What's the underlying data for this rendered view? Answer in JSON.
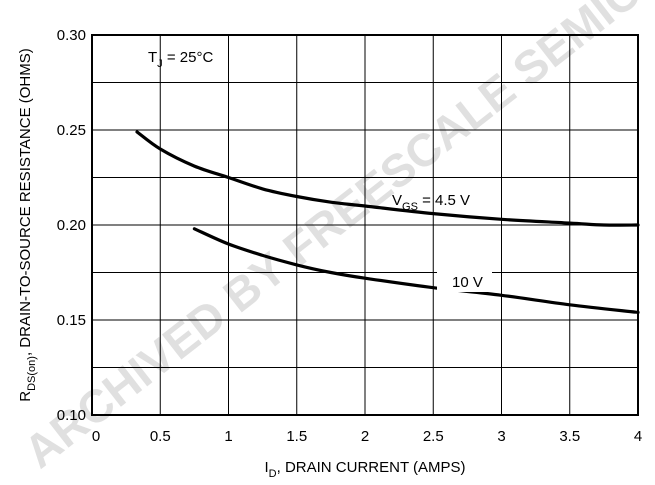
{
  "chart_data": {
    "type": "line",
    "xlabel": "I",
    "xlabel_sub": "D",
    "xlabel_rest": ", DRAIN CURRENT (AMPS)",
    "ylabel": "R",
    "ylabel_sub": "DS(on)",
    "ylabel_rest": ", DRAIN-TO-SOURCE RESISTANCE (OHMS)",
    "xlim": [
      0,
      4
    ],
    "ylim": [
      0.1,
      0.3
    ],
    "x_ticks": [
      "0",
      "0.5",
      "1",
      "1.5",
      "2",
      "2.5",
      "3",
      "3.5",
      "4"
    ],
    "y_ticks": [
      "0.10",
      "0.15",
      "0.20",
      "0.25",
      "0.30"
    ],
    "grid": true,
    "annotation": {
      "T": "T",
      "T_sub": "J",
      "T_rest": " =  25°C"
    },
    "series": [
      {
        "name": "V_GS = 4.5 V",
        "label_main": "V",
        "label_sub": "GS",
        "label_rest": " = 4.5 V",
        "x": [
          0.33,
          0.5,
          0.75,
          1.0,
          1.25,
          1.5,
          1.75,
          2.0,
          2.5,
          3.0,
          3.5,
          3.75,
          4.0
        ],
        "y": [
          0.249,
          0.24,
          0.231,
          0.225,
          0.219,
          0.215,
          0.212,
          0.21,
          0.206,
          0.203,
          0.201,
          0.2,
          0.2
        ]
      },
      {
        "name": "10 V",
        "label_main": "10 V",
        "x": [
          0.75,
          1.0,
          1.25,
          1.5,
          1.75,
          2.0,
          2.5,
          3.0,
          3.5,
          4.0
        ],
        "y": [
          0.198,
          0.19,
          0.184,
          0.179,
          0.175,
          0.172,
          0.167,
          0.163,
          0.158,
          0.154
        ]
      }
    ],
    "watermark": "ARCHIVED BY FREESCALE SEMICONDUCTOR, INC. — THIS DEVICE IS OBSOLETE. CONTACT YOUR ON SEMICONDUCTOR REPRESENTATIVE FOR INFORMATION"
  }
}
